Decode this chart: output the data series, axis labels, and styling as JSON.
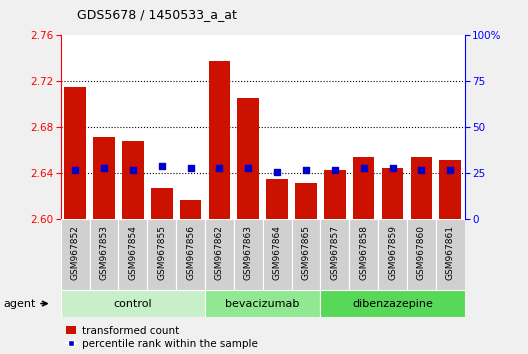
{
  "title": "GDS5678 / 1450533_a_at",
  "samples": [
    "GSM967852",
    "GSM967853",
    "GSM967854",
    "GSM967855",
    "GSM967856",
    "GSM967862",
    "GSM967863",
    "GSM967864",
    "GSM967865",
    "GSM967857",
    "GSM967858",
    "GSM967859",
    "GSM967860",
    "GSM967861"
  ],
  "bar_values": [
    2.715,
    2.672,
    2.668,
    2.627,
    2.617,
    2.738,
    2.706,
    2.635,
    2.632,
    2.643,
    2.654,
    2.645,
    2.654,
    2.652
  ],
  "percentile_values": [
    27,
    28,
    27,
    29,
    28,
    28,
    28,
    26,
    27,
    27,
    28,
    28,
    27,
    27
  ],
  "groups": [
    {
      "name": "control",
      "start": 0,
      "end": 5,
      "color": "#c8f0c8"
    },
    {
      "name": "bevacizumab",
      "start": 5,
      "end": 9,
      "color": "#90e890"
    },
    {
      "name": "dibenzazepine",
      "start": 9,
      "end": 14,
      "color": "#58d858"
    }
  ],
  "ylim_left": [
    2.6,
    2.76
  ],
  "ylim_right": [
    0,
    100
  ],
  "yticks_left": [
    2.6,
    2.64,
    2.68,
    2.72,
    2.76
  ],
  "yticks_right": [
    0,
    25,
    50,
    75,
    100
  ],
  "ytick_right_labels": [
    "0",
    "25",
    "50",
    "75",
    "100%"
  ],
  "bar_color": "#cc1100",
  "dot_color": "#0000cc",
  "background_color": "#f0f0f0",
  "plot_bg_color": "#ffffff",
  "xtick_bg_color": "#d0d0d0",
  "legend_items": [
    "transformed count",
    "percentile rank within the sample"
  ]
}
